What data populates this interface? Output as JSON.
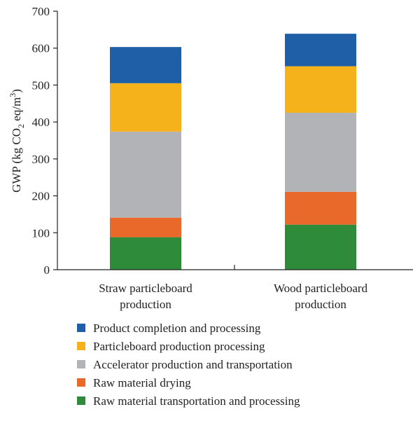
{
  "chart_data": {
    "type": "bar",
    "stacked": true,
    "categories": [
      [
        "Straw particleboard",
        "production"
      ],
      [
        "Wood particleboard",
        "production"
      ]
    ],
    "series": [
      {
        "name": "Raw material transportation and processing",
        "values": [
          88,
          122
        ],
        "color": "#2e8b3a"
      },
      {
        "name": "Raw material drying",
        "values": [
          53,
          89
        ],
        "color": "#e8692a"
      },
      {
        "name": "Accelerator production and transportation",
        "values": [
          233,
          214
        ],
        "color": "#b2b3b6"
      },
      {
        "name": "Particleboard production processing",
        "values": [
          131,
          126
        ],
        "color": "#f5b21a"
      },
      {
        "name": "Product completion and processing",
        "values": [
          98,
          88
        ],
        "color": "#1f5fa8"
      }
    ],
    "legend_order": [
      4,
      3,
      2,
      1,
      0
    ],
    "ylabel": {
      "prefix": "GWP (kg CO",
      "sub": "2",
      "middle": " eq/m",
      "sup": "3",
      "suffix": ")"
    },
    "ylim": [
      0,
      700
    ],
    "yticks": [
      0,
      100,
      200,
      300,
      400,
      500,
      600,
      700
    ],
    "grid": false,
    "legend_position": "bottom"
  }
}
